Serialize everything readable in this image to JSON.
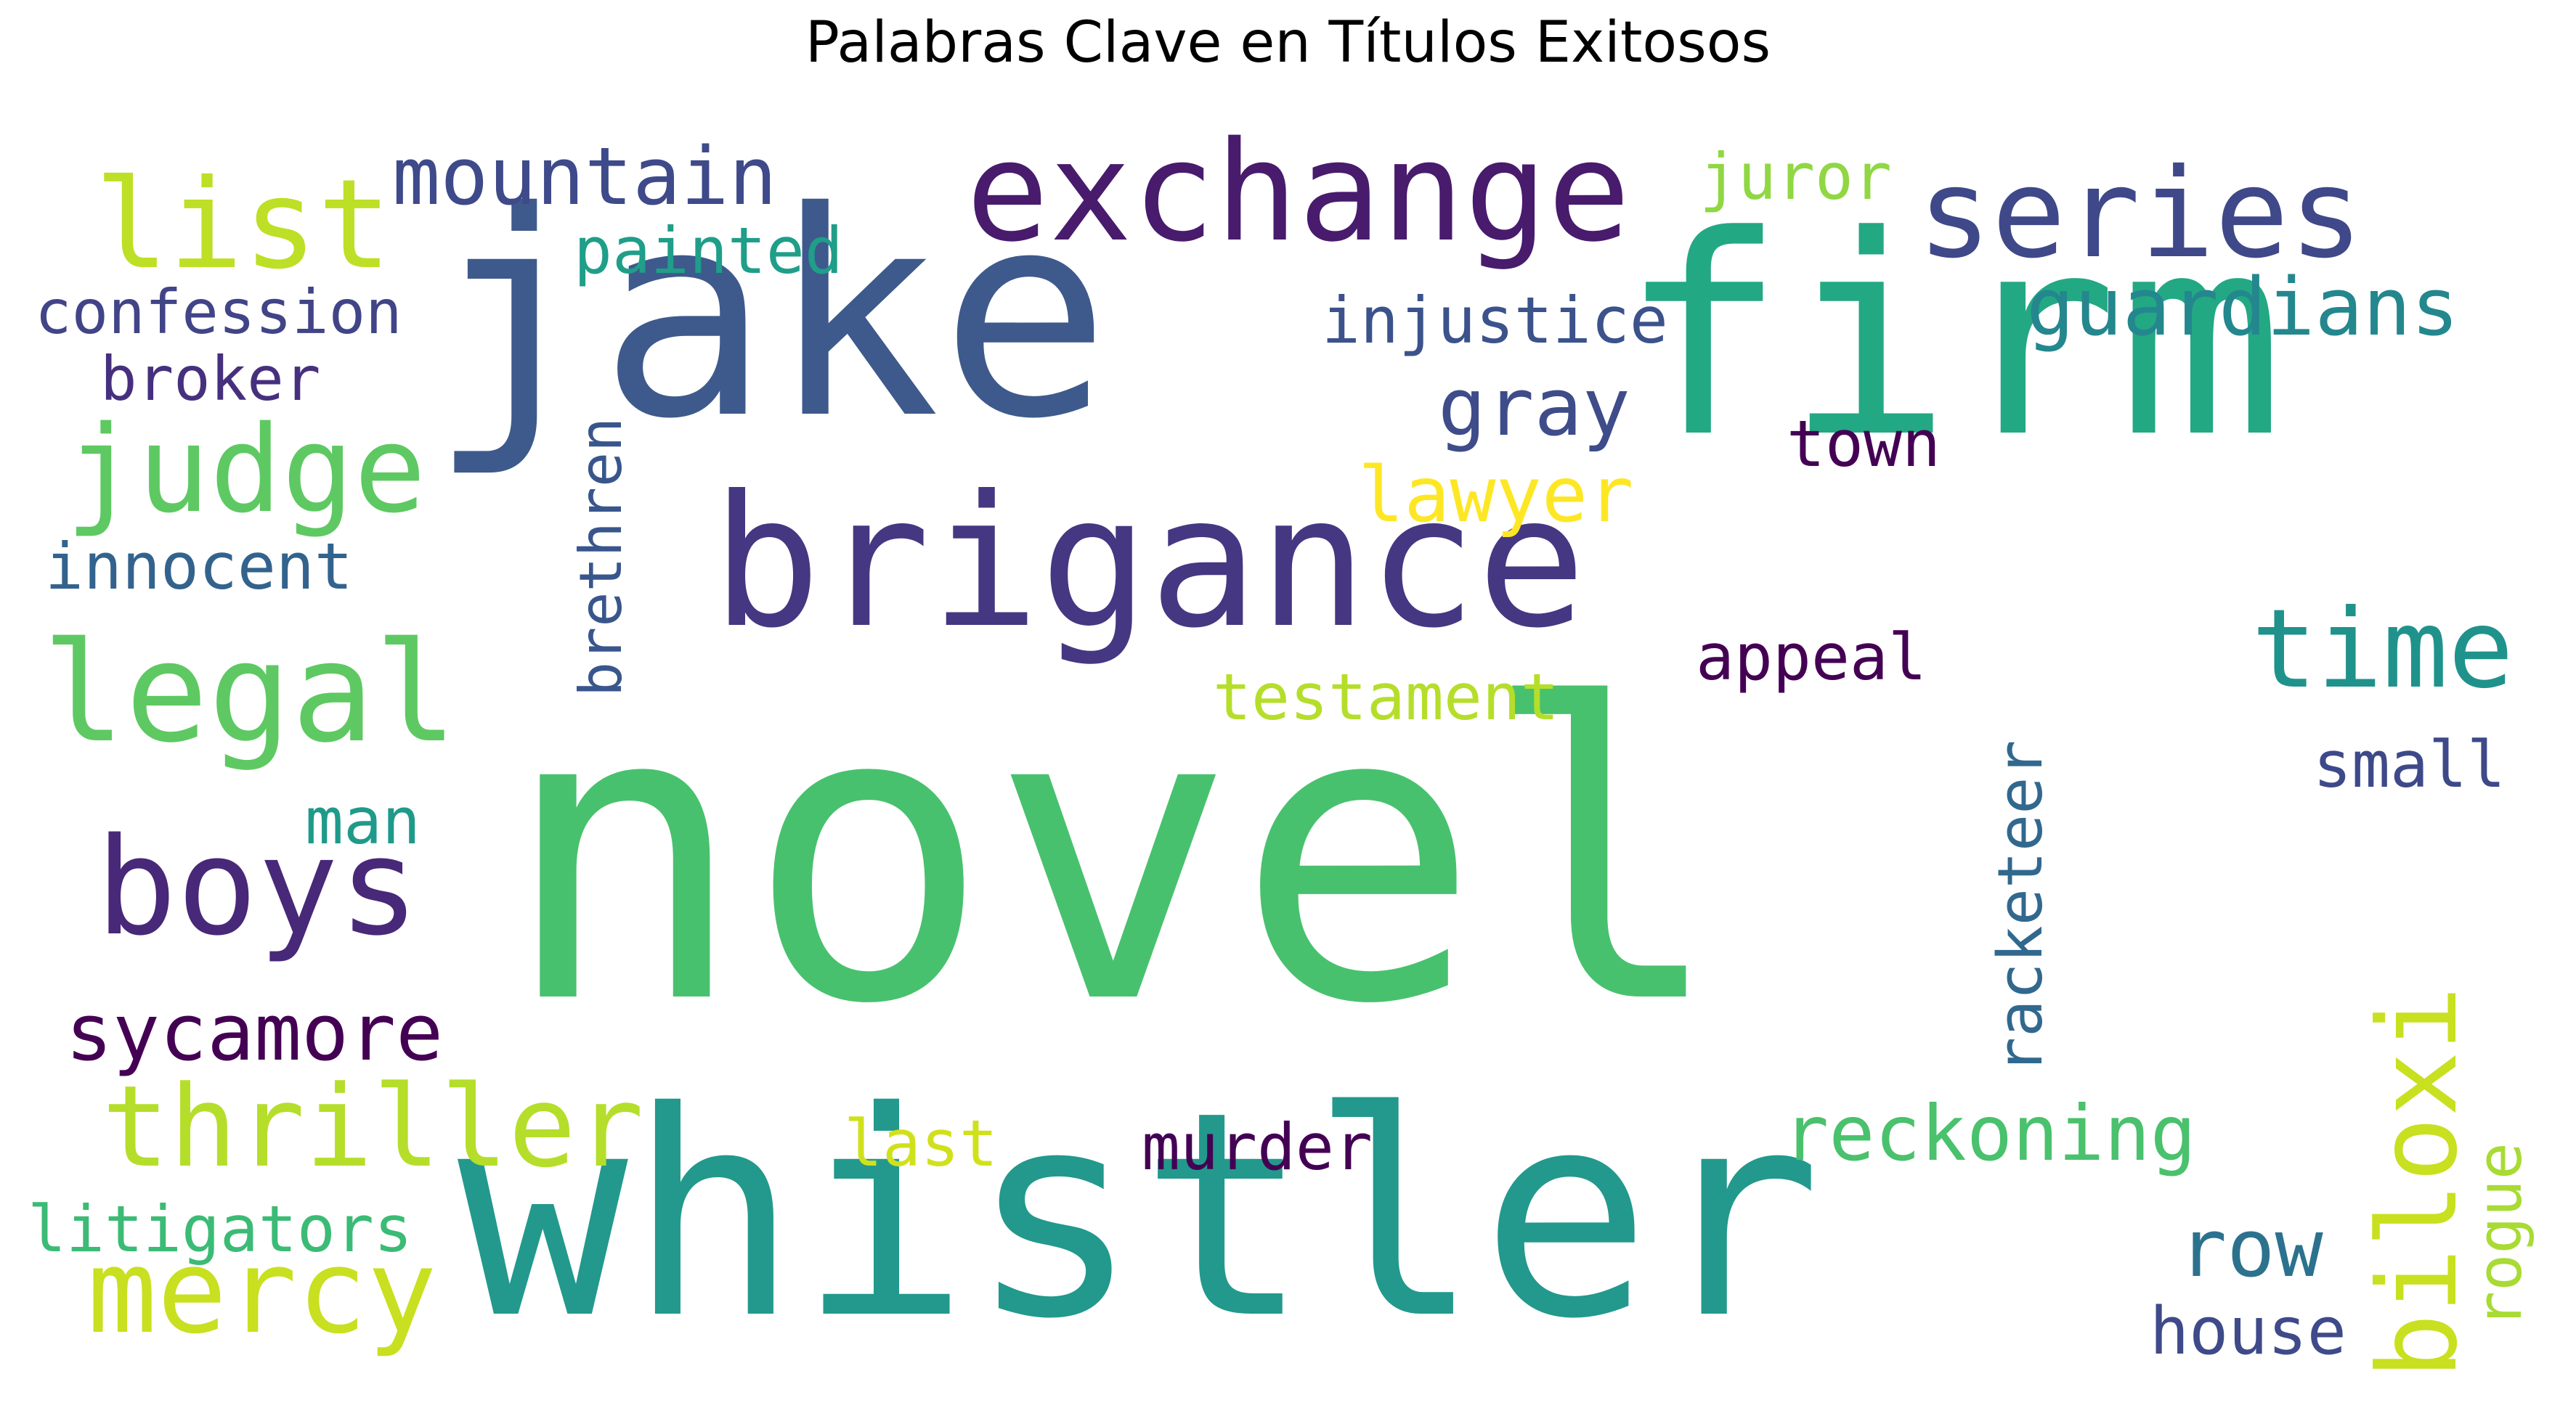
{
  "title": "Palabras Clave en Títulos Exitosos",
  "words": [
    {
      "id": "novel",
      "text": "novel",
      "color": "#48c16e"
    },
    {
      "id": "whistler",
      "text": "whistler",
      "color": "#22998c"
    },
    {
      "id": "jake",
      "text": "jake",
      "color": "#3e5a8c"
    },
    {
      "id": "firm",
      "text": "firm",
      "color": "#23a884"
    },
    {
      "id": "brigance",
      "text": "brigance",
      "color": "#453781"
    },
    {
      "id": "exchange",
      "text": "exchange",
      "color": "#481b6d"
    },
    {
      "id": "series",
      "text": "series",
      "color": "#3f4888"
    },
    {
      "id": "list",
      "text": "list",
      "color": "#bddf26"
    },
    {
      "id": "mountain",
      "text": "mountain",
      "color": "#3e4a89"
    },
    {
      "id": "painted",
      "text": "painted",
      "color": "#1f9e89"
    },
    {
      "id": "juror",
      "text": "juror",
      "color": "#90d743"
    },
    {
      "id": "guardians",
      "text": "guardians",
      "color": "#24878e"
    },
    {
      "id": "confession",
      "text": "confession",
      "color": "#414487"
    },
    {
      "id": "broker",
      "text": "broker",
      "color": "#46307e"
    },
    {
      "id": "judge",
      "text": "judge",
      "color": "#5ec962"
    },
    {
      "id": "injustice",
      "text": "injustice",
      "color": "#3b528b"
    },
    {
      "id": "gray",
      "text": "gray",
      "color": "#3e4c8a"
    },
    {
      "id": "town",
      "text": "town",
      "color": "#440154"
    },
    {
      "id": "lawyer",
      "text": "lawyer",
      "color": "#fde725"
    },
    {
      "id": "innocent",
      "text": "innocent",
      "color": "#33638d"
    },
    {
      "id": "legal",
      "text": "legal",
      "color": "#5ec962"
    },
    {
      "id": "brethren",
      "text": "brethren",
      "color": "#39568c"
    },
    {
      "id": "time",
      "text": "time",
      "color": "#20928c"
    },
    {
      "id": "appeal",
      "text": "appeal",
      "color": "#440154"
    },
    {
      "id": "testament",
      "text": "testament",
      "color": "#b5de2b"
    },
    {
      "id": "racketeer",
      "text": "racketeer",
      "color": "#31688e"
    },
    {
      "id": "small",
      "text": "small",
      "color": "#3e4989"
    },
    {
      "id": "boys",
      "text": "boys",
      "color": "#482878"
    },
    {
      "id": "man",
      "text": "man",
      "color": "#1f9a8a"
    },
    {
      "id": "biloxi",
      "text": "biloxi",
      "color": "#c8e020"
    },
    {
      "id": "sycamore",
      "text": "sycamore",
      "color": "#440154"
    },
    {
      "id": "thriller",
      "text": "thriller",
      "color": "#b5de2b"
    },
    {
      "id": "reckoning",
      "text": "reckoning",
      "color": "#4ac16d"
    },
    {
      "id": "last",
      "text": "last",
      "color": "#d0e11c"
    },
    {
      "id": "murder",
      "text": "murder",
      "color": "#440154"
    },
    {
      "id": "rogue",
      "text": "rogue",
      "color": "#a8db34"
    },
    {
      "id": "mercy",
      "text": "mercy",
      "color": "#c8e020"
    },
    {
      "id": "litigators",
      "text": "litigators",
      "color": "#3bbb75"
    },
    {
      "id": "row",
      "text": "row",
      "color": "#2c728e"
    },
    {
      "id": "house",
      "text": "house",
      "color": "#3e4a89"
    }
  ]
}
